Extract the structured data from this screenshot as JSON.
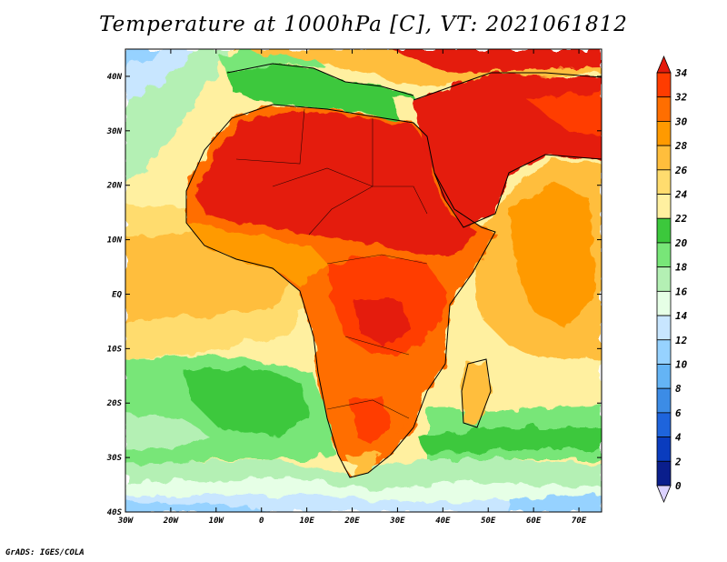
{
  "title": "Temperature at 1000hPa [C], VT: 2021061812",
  "credit": "GrADS: IGES/COLA",
  "map": {
    "variable": "Temperature at 1000hPa",
    "units": "C",
    "valid_time": "2021061812",
    "lon_range": [
      -30,
      75
    ],
    "lat_range": [
      -40,
      45
    ],
    "lon_ticks": [
      "30W",
      "20W",
      "10W",
      "0",
      "10E",
      "20E",
      "30E",
      "40E",
      "50E",
      "60E",
      "70E"
    ],
    "lat_ticks": [
      "40N",
      "30N",
      "20N",
      "10N",
      "EQ",
      "10S",
      "20S",
      "30S",
      "40S"
    ],
    "region": "Africa, Arabian Peninsula and surrounding oceans"
  },
  "colorbar": {
    "labels": [
      "34",
      "32",
      "30",
      "28",
      "26",
      "24",
      "22",
      "20",
      "18",
      "16",
      "14",
      "12",
      "10",
      "8",
      "6",
      "4",
      "2",
      "0"
    ],
    "colors": [
      "#e41a0c",
      "#ff3c00",
      "#ff6e00",
      "#ff9a00",
      "#ffbe3c",
      "#ffdc6e",
      "#fff0a0",
      "#3cc83c",
      "#78e678",
      "#b4f0b4",
      "#e6ffe6",
      "#c8e6ff",
      "#96d2ff",
      "#64b4f5",
      "#3c8ce6",
      "#1e64dc",
      "#0a3cbe",
      "#0a1e8c",
      "#dcd2ff"
    ]
  }
}
